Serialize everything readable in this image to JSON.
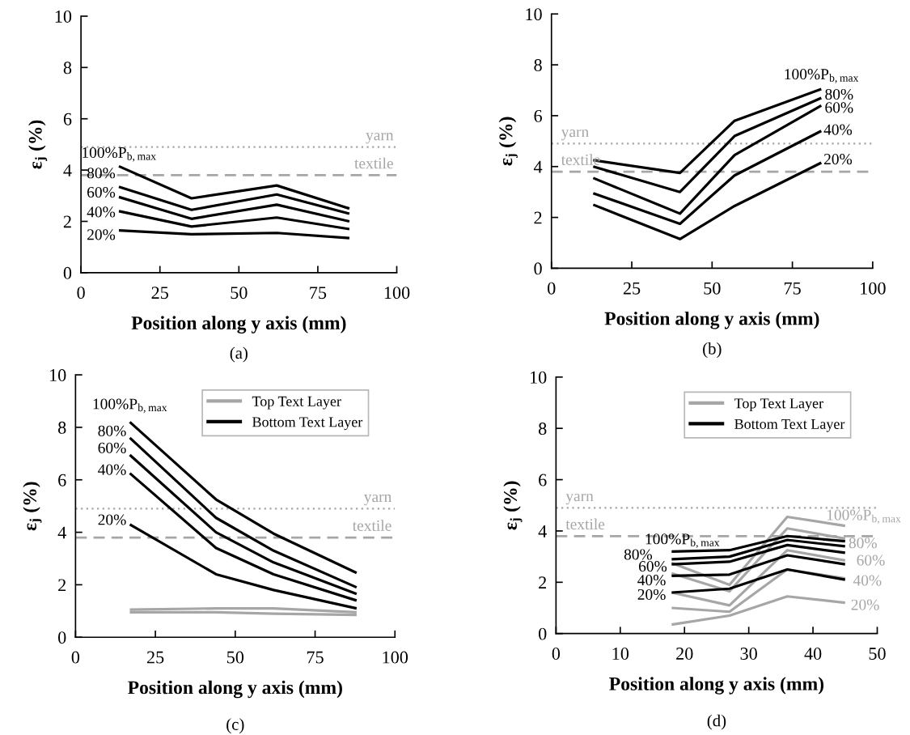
{
  "chart_data": [
    {
      "type": "line",
      "xlabel": "Position along y axis (mm)",
      "ylabel": "ε$_{j}$ (%)",
      "xlim": [
        0,
        100
      ],
      "xticks": [
        0,
        25,
        50,
        75,
        100
      ],
      "ylim": [
        0,
        10
      ],
      "yticks": [
        0,
        2,
        4,
        6,
        8,
        10
      ],
      "x": [
        12,
        35,
        62,
        85
      ],
      "series": [
        {
          "color": "#000000",
          "values": [
            4.15,
            2.9,
            3.4,
            2.5
          ]
        },
        {
          "color": "#000000",
          "values": [
            3.35,
            2.45,
            3.05,
            2.3
          ]
        },
        {
          "color": "#000000",
          "values": [
            2.95,
            2.1,
            2.65,
            2.0
          ]
        },
        {
          "color": "#000000",
          "values": [
            2.4,
            1.8,
            2.15,
            1.7
          ]
        },
        {
          "color": "#000000",
          "values": [
            1.65,
            1.5,
            1.55,
            1.35
          ]
        }
      ],
      "ref_lines": [
        {
          "axis": "y",
          "value": 4.9,
          "label": "yarn",
          "color": "#a6a6a6",
          "line_style": "dotted"
        },
        {
          "axis": "y",
          "value": 3.8,
          "label": "textile",
          "color": "#a6a6a6",
          "line_style": "dashed"
        }
      ],
      "annotations": [
        {
          "text": "100%P$_{b,max}$",
          "x": 12,
          "y": 4.15
        },
        {
          "text": "80%",
          "x": 12,
          "y": 3.35
        },
        {
          "text": "60%",
          "x": 12,
          "y": 2.95
        },
        {
          "text": "40%",
          "x": 12,
          "y": 2.4
        },
        {
          "text": "20%",
          "x": 12,
          "y": 1.65
        },
        "(a)"
      ]
    },
    {
      "type": "line",
      "xlabel": "Position along y axis (mm)",
      "ylabel": "ε$_{j}$ (%)",
      "xlim": [
        0,
        100
      ],
      "xticks": [
        0,
        25,
        50,
        75,
        100
      ],
      "ylim": [
        0,
        10
      ],
      "yticks": [
        0,
        2,
        4,
        6,
        8,
        10
      ],
      "x": [
        13,
        40,
        57,
        84
      ],
      "series": [
        {
          "color": "#000000",
          "values": [
            4.25,
            3.75,
            5.8,
            7.05
          ]
        },
        {
          "color": "#000000",
          "values": [
            4.0,
            3.0,
            5.2,
            6.7
          ]
        },
        {
          "color": "#000000",
          "values": [
            3.55,
            2.15,
            4.45,
            6.4
          ]
        },
        {
          "color": "#000000",
          "values": [
            2.95,
            1.75,
            3.65,
            5.4
          ]
        },
        {
          "color": "#000000",
          "values": [
            2.5,
            1.15,
            2.45,
            4.15
          ]
        }
      ],
      "ref_lines": [
        {
          "axis": "y",
          "value": 4.9,
          "label": "yarn",
          "color": "#a6a6a6",
          "line_style": "dotted"
        },
        {
          "axis": "y",
          "value": 3.8,
          "label": "textile",
          "color": "#a6a6a6",
          "line_style": "dashed"
        }
      ],
      "annotations": [
        {
          "text": "100%P$_{b,max}$",
          "x": 84,
          "y": 7.05
        },
        {
          "text": "80%",
          "x": 84,
          "y": 6.7
        },
        {
          "text": "60%",
          "x": 84,
          "y": 6.4
        },
        {
          "text": "40%",
          "x": 84,
          "y": 5.4
        },
        {
          "text": "20%",
          "x": 84,
          "y": 4.15
        },
        "(b)"
      ]
    },
    {
      "type": "line",
      "xlabel": "Position along y axis (mm)",
      "ylabel": "ε$_{j}$ (%)",
      "xlim": [
        0,
        100
      ],
      "xticks": [
        0,
        25,
        50,
        75,
        100
      ],
      "ylim": [
        0,
        10
      ],
      "yticks": [
        0,
        2,
        4,
        6,
        8,
        10
      ],
      "x": [
        17,
        44,
        62,
        88
      ],
      "legend": "top right",
      "series": [
        {
          "name": "Top Text Layer",
          "color": "#a6a6a6",
          "values": [
            1.05,
            1.1,
            1.1,
            0.95
          ]
        },
        {
          "color": "#a6a6a6",
          "values": [
            0.95,
            0.95,
            0.9,
            0.85
          ]
        },
        {
          "name": "Bottom Text Layer",
          "color": "#000000",
          "values": [
            8.2,
            5.25,
            3.95,
            2.45
          ]
        },
        {
          "color": "#000000",
          "values": [
            7.6,
            4.55,
            3.3,
            1.9
          ]
        },
        {
          "color": "#000000",
          "values": [
            6.95,
            4.0,
            2.85,
            1.65
          ]
        },
        {
          "color": "#000000",
          "values": [
            6.25,
            3.4,
            2.4,
            1.4
          ]
        },
        {
          "color": "#000000",
          "values": [
            4.3,
            2.4,
            1.8,
            1.1
          ]
        }
      ],
      "ref_lines": [
        {
          "axis": "y",
          "value": 4.9,
          "label": "yarn",
          "color": "#a6a6a6",
          "line_style": "dotted"
        },
        {
          "axis": "y",
          "value": 3.8,
          "label": "textile",
          "color": "#a6a6a6",
          "line_style": "dashed"
        }
      ],
      "annotations": [
        {
          "text": "100%P$_{b,max}$",
          "x": 17,
          "y": 8.2
        },
        {
          "text": "80%",
          "x": 17,
          "y": 7.6
        },
        {
          "text": "60%",
          "x": 17,
          "y": 6.95
        },
        {
          "text": "40%",
          "x": 17,
          "y": 6.25
        },
        {
          "text": "20%",
          "x": 17,
          "y": 4.3
        },
        "(c)"
      ]
    },
    {
      "type": "line",
      "xlabel": "Position along y axis (mm)",
      "ylabel": "ε$_{j}$ (%)",
      "xlim": [
        0,
        50
      ],
      "xticks": [
        0,
        10,
        20,
        30,
        40,
        50
      ],
      "ylim": [
        0,
        10
      ],
      "yticks": [
        0,
        2,
        4,
        6,
        8,
        10
      ],
      "x": [
        18,
        27,
        36,
        45
      ],
      "legend": "top right",
      "series": [
        {
          "name": "Top Text Layer",
          "color": "#a6a6a6",
          "values": [
            2.75,
            1.9,
            4.55,
            4.2
          ]
        },
        {
          "color": "#a6a6a6",
          "values": [
            2.35,
            1.65,
            4.1,
            3.7
          ]
        },
        {
          "color": "#a6a6a6",
          "values": [
            1.6,
            1.1,
            3.25,
            2.85
          ]
        },
        {
          "color": "#a6a6a6",
          "values": [
            1.0,
            0.85,
            2.5,
            2.15
          ]
        },
        {
          "color": "#a6a6a6",
          "values": [
            0.35,
            0.7,
            1.45,
            1.2
          ]
        },
        {
          "name": "Bottom Text Layer",
          "color": "#000000",
          "values": [
            3.2,
            3.25,
            3.8,
            3.6
          ]
        },
        {
          "color": "#000000",
          "values": [
            2.9,
            3.0,
            3.65,
            3.4
          ]
        },
        {
          "color": "#000000",
          "values": [
            2.7,
            2.8,
            3.45,
            3.15
          ]
        },
        {
          "color": "#000000",
          "values": [
            2.25,
            2.3,
            3.05,
            2.7
          ]
        },
        {
          "color": "#000000",
          "values": [
            1.6,
            1.75,
            2.5,
            2.1
          ]
        }
      ],
      "ref_lines": [
        {
          "axis": "y",
          "value": 4.9,
          "label": "yarn",
          "color": "#a6a6a6",
          "line_style": "dotted"
        },
        {
          "axis": "y",
          "value": 3.8,
          "label": "textile",
          "color": "#a6a6a6",
          "line_style": "dashed"
        }
      ],
      "annotations": [
        {
          "text": "100%P$_{b,max}$",
          "x": 18,
          "y": 3.2
        },
        {
          "text": "80%",
          "x": 18,
          "y": 2.9
        },
        {
          "text": "60%",
          "x": 18,
          "y": 2.7
        },
        {
          "text": "40%",
          "x": 18,
          "y": 2.25
        },
        {
          "text": "20%",
          "x": 18,
          "y": 1.6
        },
        {
          "text": "100%P$_{b,max}$",
          "x": 45,
          "y": 4.2
        },
        {
          "text": "80%",
          "x": 45,
          "y": 3.7
        },
        {
          "text": "60%",
          "x": 45,
          "y": 2.85
        },
        {
          "text": "40%",
          "x": 45,
          "y": 2.15
        },
        {
          "text": "20%",
          "x": 45,
          "y": 1.2
        },
        "(d)"
      ]
    }
  ]
}
